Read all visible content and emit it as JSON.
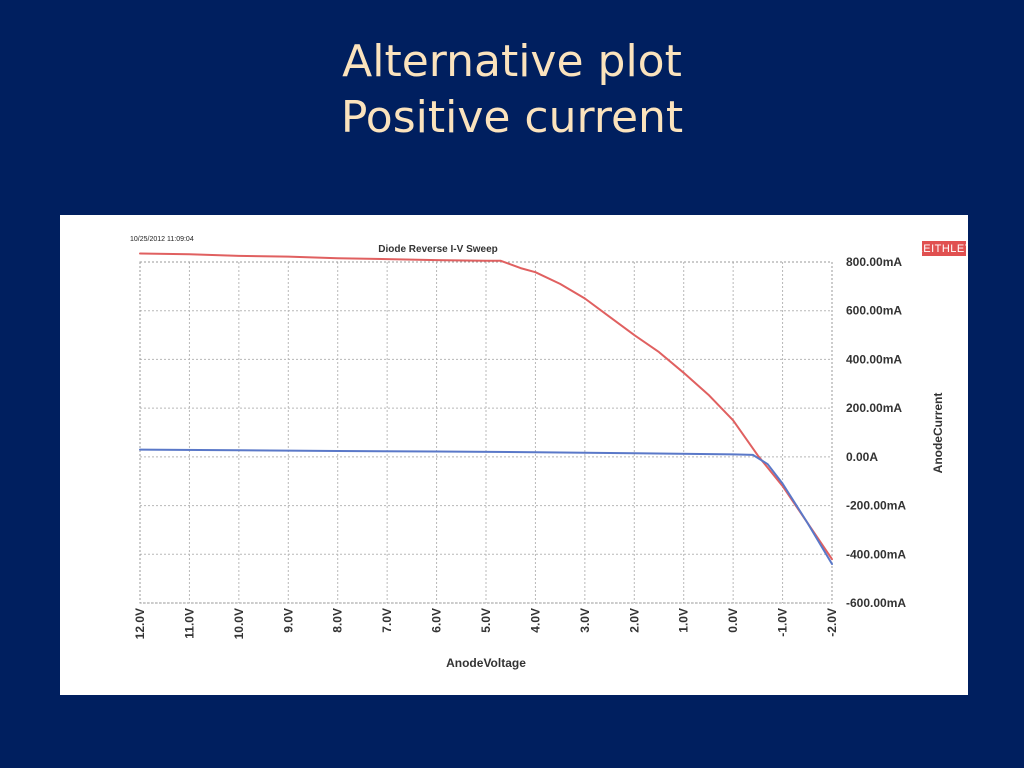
{
  "slide": {
    "title_line1": "Alternative plot",
    "title_line2": "Positive current"
  },
  "chart_data": {
    "type": "line",
    "title": "Diode Reverse I-V Sweep",
    "timestamp": "10/25/2012 11:09:04",
    "brand": "KEITHLEY",
    "xlabel": "AnodeVoltage",
    "ylabel": "AnodeCurrent",
    "xlim": [
      12.0,
      -2.0
    ],
    "ylim": [
      -600,
      800
    ],
    "x_tick_values": [
      12,
      11,
      10,
      9,
      8,
      7,
      6,
      5,
      4,
      3,
      2,
      1,
      0,
      -1,
      -2
    ],
    "x_tick_labels": [
      "12.0V",
      "11.0V",
      "10.0V",
      "9.0V",
      "8.0V",
      "7.0V",
      "6.0V",
      "5.0V",
      "4.0V",
      "3.0V",
      "2.0V",
      "1.0V",
      "0.0V",
      "-1.0V",
      "-2.0V"
    ],
    "y_tick_values": [
      800,
      600,
      400,
      200,
      0,
      -200,
      -400,
      -600
    ],
    "y_tick_labels": [
      "800.00mA",
      "600.00mA",
      "400.00mA",
      "200.00mA",
      "0.00A",
      "-200.00mA",
      "-400.00mA",
      "-600.00mA"
    ],
    "grid": true,
    "colors": {
      "red_series": "#e06060",
      "blue_series": "#5a78c8",
      "brand": "#e05050"
    },
    "series": [
      {
        "color": "#e06060",
        "x": [
          12.0,
          11.0,
          10.0,
          9.0,
          8.0,
          7.0,
          6.0,
          5.0,
          4.7,
          4.3,
          4.0,
          3.5,
          3.0,
          2.5,
          2.0,
          1.5,
          1.0,
          0.5,
          0.0,
          -0.5,
          -1.0,
          -1.5,
          -2.0
        ],
        "y": [
          835,
          832,
          825,
          822,
          815,
          812,
          808,
          805,
          805,
          775,
          758,
          710,
          650,
          575,
          500,
          430,
          345,
          255,
          150,
          5,
          -120,
          -270,
          -420
        ]
      },
      {
        "color": "#5a78c8",
        "x": [
          12.0,
          10.0,
          8.0,
          6.0,
          4.0,
          2.0,
          0.0,
          -0.4,
          -0.7,
          -1.0,
          -1.5,
          -2.0
        ],
        "y": [
          30,
          27,
          24,
          22,
          19,
          15,
          10,
          8,
          -30,
          -110,
          -270,
          -440
        ]
      }
    ]
  }
}
